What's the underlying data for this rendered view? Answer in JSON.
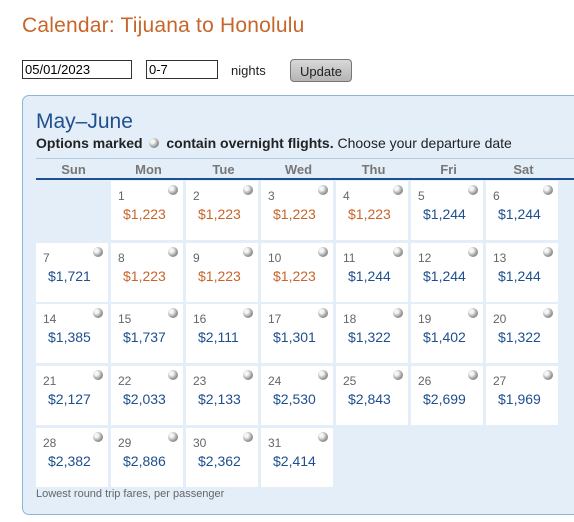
{
  "page": {
    "title": "Calendar: Tijuana to Honolulu"
  },
  "controls": {
    "date_value": "05/01/2023",
    "nights_value": "0-7",
    "nights_label": "nights",
    "update_label": "Update"
  },
  "calendar": {
    "month_title": "May–June",
    "legend_prefix": "Options marked",
    "legend_bold": "contain overnight flights.",
    "legend_suffix": "Choose your departure date",
    "weekdays": [
      "Sun",
      "Mon",
      "Tue",
      "Wed",
      "Thu",
      "Fri",
      "Sat"
    ],
    "weeks": [
      [
        null,
        {
          "day": "1",
          "price": "$1,223",
          "color": "orange"
        },
        {
          "day": "2",
          "price": "$1,223",
          "color": "orange"
        },
        {
          "day": "3",
          "price": "$1,223",
          "color": "orange"
        },
        {
          "day": "4",
          "price": "$1,223",
          "color": "orange"
        },
        {
          "day": "5",
          "price": "$1,244",
          "color": "blue"
        },
        {
          "day": "6",
          "price": "$1,244",
          "color": "blue"
        }
      ],
      [
        {
          "day": "7",
          "price": "$1,721",
          "color": "blue"
        },
        {
          "day": "8",
          "price": "$1,223",
          "color": "orange"
        },
        {
          "day": "9",
          "price": "$1,223",
          "color": "orange"
        },
        {
          "day": "10",
          "price": "$1,223",
          "color": "orange"
        },
        {
          "day": "11",
          "price": "$1,244",
          "color": "blue"
        },
        {
          "day": "12",
          "price": "$1,244",
          "color": "blue"
        },
        {
          "day": "13",
          "price": "$1,244",
          "color": "blue"
        }
      ],
      [
        {
          "day": "14",
          "price": "$1,385",
          "color": "blue"
        },
        {
          "day": "15",
          "price": "$1,737",
          "color": "blue"
        },
        {
          "day": "16",
          "price": "$2,111",
          "color": "blue"
        },
        {
          "day": "17",
          "price": "$1,301",
          "color": "blue"
        },
        {
          "day": "18",
          "price": "$1,322",
          "color": "blue"
        },
        {
          "day": "19",
          "price": "$1,402",
          "color": "blue"
        },
        {
          "day": "20",
          "price": "$1,322",
          "color": "blue"
        }
      ],
      [
        {
          "day": "21",
          "price": "$2,127",
          "color": "blue"
        },
        {
          "day": "22",
          "price": "$2,033",
          "color": "blue"
        },
        {
          "day": "23",
          "price": "$2,133",
          "color": "blue"
        },
        {
          "day": "24",
          "price": "$2,530",
          "color": "blue"
        },
        {
          "day": "25",
          "price": "$2,843",
          "color": "blue"
        },
        {
          "day": "26",
          "price": "$2,699",
          "color": "blue"
        },
        {
          "day": "27",
          "price": "$1,969",
          "color": "blue"
        }
      ],
      [
        {
          "day": "28",
          "price": "$2,382",
          "color": "blue"
        },
        {
          "day": "29",
          "price": "$2,886",
          "color": "blue"
        },
        {
          "day": "30",
          "price": "$2,362",
          "color": "blue"
        },
        {
          "day": "31",
          "price": "$2,414",
          "color": "blue"
        },
        null,
        null,
        null
      ]
    ],
    "overnight_icon": "overnight-flight-icon",
    "footnote": "Lowest round trip fares, per passenger"
  },
  "colors": {
    "title": "#c8652a",
    "orange_price": "#c8652a",
    "blue_price": "#1f4f8f",
    "panel_background": "#e3eef8"
  }
}
